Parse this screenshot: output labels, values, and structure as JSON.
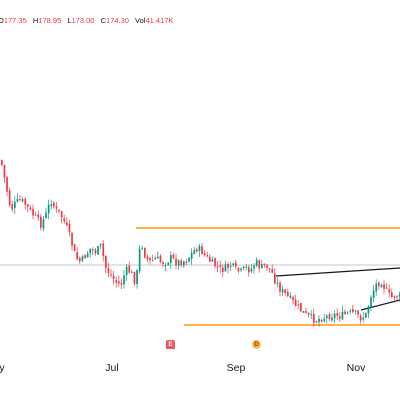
{
  "legend": {
    "open_label": "O",
    "open_value": "177.35",
    "high_label": "H",
    "high_value": "178.95",
    "low_label": "L",
    "low_value": "173.00",
    "close_label": "C",
    "close_value": "174.30",
    "volume_label": "Vol",
    "volume_value": "41.417K"
  },
  "time_axis": {
    "labels": [
      "y",
      "Jul",
      "Sep",
      "Nov"
    ]
  },
  "markers": {
    "earnings_icon": "E",
    "dividend_icon": "D"
  },
  "colors": {
    "up": "#089981",
    "down": "#f23645",
    "range_line": "#ff9800",
    "trend_line": "#131722",
    "price_line": "#b2b5be"
  },
  "chart_data": {
    "type": "candlestick",
    "title": "",
    "xlabel": "",
    "ylabel": "",
    "x_ticks": [
      "y",
      "Jul",
      "Sep",
      "Nov"
    ],
    "series": [
      {
        "values": [
          [
            0,
            160
          ],
          [
            5,
            185
          ],
          [
            10,
            210
          ],
          [
            15,
            203
          ],
          [
            20,
            200
          ],
          [
            25,
            205
          ],
          [
            30,
            212
          ],
          [
            35,
            218
          ],
          [
            40,
            224
          ],
          [
            45,
            215
          ],
          [
            50,
            200
          ],
          [
            55,
            210
          ],
          [
            60,
            215
          ],
          [
            65,
            225
          ],
          [
            70,
            240
          ],
          [
            75,
            258
          ],
          [
            80,
            262
          ],
          [
            85,
            255
          ],
          [
            90,
            248
          ],
          [
            95,
            252
          ],
          [
            100,
            246
          ],
          [
            105,
            268
          ],
          [
            110,
            275
          ],
          [
            115,
            282
          ],
          [
            120,
            285
          ],
          [
            125,
            270
          ],
          [
            130,
            272
          ],
          [
            135,
            283
          ],
          [
            140,
            240
          ],
          [
            145,
            258
          ],
          [
            150,
            262
          ],
          [
            155,
            258
          ],
          [
            160,
            262
          ],
          [
            165,
            262
          ],
          [
            170,
            258
          ],
          [
            175,
            262
          ],
          [
            180,
            262
          ],
          [
            185,
            260
          ],
          [
            190,
            255
          ],
          [
            195,
            248
          ],
          [
            200,
            250
          ],
          [
            205,
            257
          ],
          [
            210,
            262
          ],
          [
            215,
            266
          ],
          [
            220,
            270
          ],
          [
            225,
            268
          ],
          [
            230,
            265
          ],
          [
            235,
            270
          ],
          [
            240,
            272
          ],
          [
            245,
            268
          ],
          [
            250,
            270
          ],
          [
            255,
            262
          ],
          [
            260,
            268
          ],
          [
            265,
            265
          ],
          [
            270,
            270
          ],
          [
            275,
            282
          ],
          [
            280,
            290
          ],
          [
            285,
            295
          ],
          [
            290,
            300
          ],
          [
            295,
            305
          ],
          [
            300,
            310
          ],
          [
            305,
            315
          ],
          [
            310,
            318
          ],
          [
            315,
            320
          ],
          [
            320,
            318
          ],
          [
            325,
            317
          ],
          [
            330,
            315
          ],
          [
            335,
            315
          ],
          [
            340,
            316
          ],
          [
            345,
            314
          ],
          [
            350,
            313
          ],
          [
            355,
            314
          ],
          [
            360,
            318
          ],
          [
            365,
            315
          ],
          [
            370,
            296
          ],
          [
            375,
            285
          ],
          [
            380,
            280
          ],
          [
            385,
            290
          ],
          [
            390,
            298
          ],
          [
            395,
            295
          ],
          [
            400,
            298
          ]
        ]
      }
    ],
    "horizontal_levels": [
      228,
      325
    ],
    "trend_lines": [
      {
        "from": [
          276,
          276
        ],
        "to": [
          400,
          268
        ]
      },
      {
        "from": [
          361,
          310
        ],
        "to": [
          400,
          300
        ]
      }
    ],
    "last_price_line": 265
  }
}
